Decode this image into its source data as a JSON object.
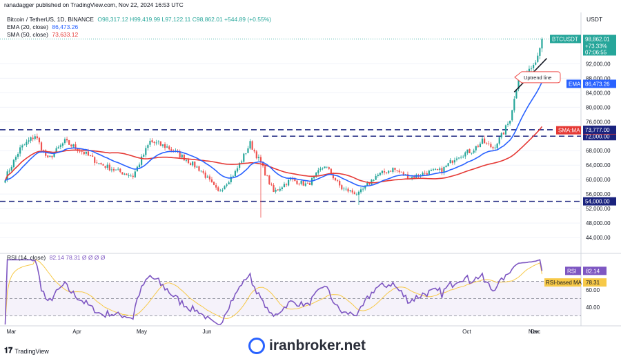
{
  "header": {
    "published": "ranadagger published on TradingView.com, Nov 22, 2024 16:53 UTC",
    "symbol_line": "Bitcoin / TetherUS, 1D, BINANCE",
    "ohlc": "O98,317.12  H99,419.99  L97,122.11  C98,862.01  +544.89 (+0.55%)",
    "ema_label": "EMA (20, close)",
    "ema_value": "86,473.26",
    "sma_label": "SMA (50, close)",
    "sma_value": "73,633.12",
    "currency": "USDT"
  },
  "colors": {
    "up": "#26a69a",
    "down": "#ef5350",
    "ema": "#2962ff",
    "sma": "#e53935",
    "support_line": "#1a237e",
    "rsi": "#7e57c2",
    "rsi_ma": "#f7c948"
  },
  "chart_data": [
    {
      "type": "candlestick",
      "title": "Bitcoin / TetherUS, 1D, BINANCE",
      "ylim": [
        40000,
        102000
      ],
      "y_ticks": [
        44000,
        48000,
        52000,
        56000,
        60000,
        64000,
        68000,
        72000,
        76000,
        80000,
        84000,
        88000,
        92000
      ],
      "x_ticks": [
        "Mar",
        "Apr",
        "May",
        "Jun",
        "Oct",
        "Nov",
        "Dec"
      ],
      "series": [
        {
          "name": "EMA (20, close)",
          "last": 86473.26
        },
        {
          "name": "SMA (50, close)",
          "last": 73633.12
        }
      ],
      "price_tags": [
        {
          "label": "BTCUSDT",
          "value": 98862.01,
          "extra": [
            "+73.33%",
            "07:06:55"
          ]
        },
        {
          "label": "EMA",
          "value": 86473.26
        },
        {
          "label": "SMA:MA",
          "value": 73633.12
        },
        {
          "label": "",
          "value": 73777.0
        },
        {
          "label": "",
          "value": 72000.0
        },
        {
          "label": "",
          "value": 54000.0
        }
      ],
      "horizontal_lines": [
        73777,
        72000,
        54000
      ],
      "annotations": [
        "Uptrend line"
      ],
      "anchors": [
        {
          "t": 0,
          "p": 60500
        },
        {
          "t": 7,
          "p": 68500
        },
        {
          "t": 14,
          "p": 72200
        },
        {
          "t": 20,
          "p": 65500
        },
        {
          "t": 28,
          "p": 70500
        },
        {
          "t": 36,
          "p": 67800
        },
        {
          "t": 44,
          "p": 64500
        },
        {
          "t": 52,
          "p": 62500
        },
        {
          "t": 60,
          "p": 61000
        },
        {
          "t": 68,
          "p": 70500
        },
        {
          "t": 76,
          "p": 69000
        },
        {
          "t": 84,
          "p": 66000
        },
        {
          "t": 92,
          "p": 62500
        },
        {
          "t": 100,
          "p": 56500
        },
        {
          "t": 108,
          "p": 62000
        },
        {
          "t": 115,
          "p": 70000
        },
        {
          "t": 120,
          "p": 64500
        },
        {
          "t": 126,
          "p": 56500
        },
        {
          "t": 134,
          "p": 60000
        },
        {
          "t": 142,
          "p": 58500
        },
        {
          "t": 150,
          "p": 64000
        },
        {
          "t": 158,
          "p": 57500
        },
        {
          "t": 166,
          "p": 56000
        },
        {
          "t": 174,
          "p": 61000
        },
        {
          "t": 182,
          "p": 63000
        },
        {
          "t": 190,
          "p": 60500
        },
        {
          "t": 198,
          "p": 62000
        },
        {
          "t": 205,
          "p": 62500
        },
        {
          "t": 212,
          "p": 66500
        },
        {
          "t": 219,
          "p": 68000
        },
        {
          "t": 224,
          "p": 70500
        },
        {
          "t": 229,
          "p": 68800
        },
        {
          "t": 233,
          "p": 72000
        },
        {
          "t": 237,
          "p": 76500
        },
        {
          "t": 241,
          "p": 88000
        },
        {
          "t": 245,
          "p": 89500
        },
        {
          "t": 249,
          "p": 92500
        },
        {
          "t": 252,
          "p": 98862
        }
      ]
    },
    {
      "type": "line",
      "title": "RSI (14, close)",
      "ylim": [
        20,
        100
      ],
      "y_ticks": [
        40,
        60
      ],
      "band": [
        30,
        70
      ],
      "series": [
        {
          "name": "RSI",
          "last": 82.14
        },
        {
          "name": "RSI-based MA",
          "last": 78.31
        }
      ],
      "header_values": "82.14  78.31  Ø  Ø  Ø  Ø"
    }
  ],
  "annotation": {
    "uptrend": "Uptrend line"
  },
  "footer": {
    "brand": "TradingView",
    "watermark": "iranbroker.net"
  }
}
